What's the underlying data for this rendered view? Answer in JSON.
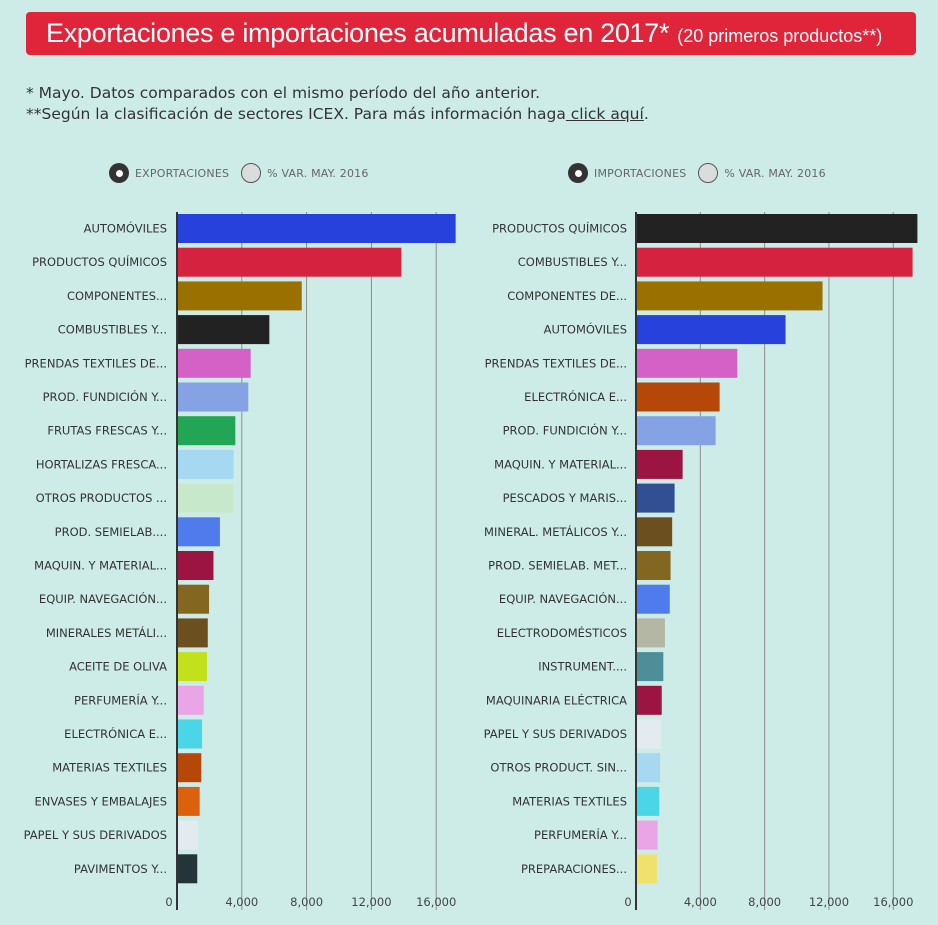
{
  "header": {
    "title": "Exportaciones e importaciones acumuladas en 2017*",
    "subtitle": "(20 primeros productos**)"
  },
  "notes": {
    "line1": "* Mayo. Datos comparados con el mismo período del año anterior.",
    "line2_prefix": "**Según la clasificación de sectores ICEX. Para más información haga",
    "line2_link": " click aquí",
    "line2_suffix": "."
  },
  "controls": {
    "exports": {
      "option1": "EXPORTACIONES",
      "option2": "% VAR. MAY. 2016",
      "selected": "option1"
    },
    "imports": {
      "option1": "IMPORTACIONES",
      "option2": "% VAR. MAY. 2016",
      "selected": "option1"
    }
  },
  "chart_data": [
    {
      "type": "bar",
      "orientation": "horizontal",
      "xlim": [
        0,
        17500
      ],
      "xticks": [
        "0",
        "4,000",
        "8,000",
        "12,000",
        "16,000"
      ],
      "xtick_values": [
        0,
        4000,
        8000,
        12000,
        16000
      ],
      "grid": true,
      "categories": [
        "AUTOMÓVILES",
        "PRODUCTOS QUÍMICOS",
        "COMPONENTES...",
        "COMBUSTIBLES Y...",
        "PRENDAS TEXTILES DE...",
        "PROD. FUNDICIÓN Y...",
        "FRUTAS FRESCAS Y...",
        "HORTALIZAS FRESCA...",
        "OTROS PRODUCTOS ...",
        "PROD. SEMIELAB....",
        "MAQUIN. Y MATERIAL...",
        "EQUIP. NAVEGACIÓN...",
        "MINERALES METÁLI...",
        "ACEITE DE OLIVA",
        "PERFUMERÍA Y...",
        "ELECTRÓNICA E...",
        "MATERIAS TEXTILES",
        "ENVASES Y EMBALAJES",
        "PAPEL Y SUS DERIVADOS",
        "PAVIMENTOS Y..."
      ],
      "values": [
        17200,
        13850,
        7700,
        5700,
        4550,
        4400,
        3600,
        3500,
        3450,
        2650,
        2250,
        1980,
        1900,
        1850,
        1650,
        1550,
        1500,
        1400,
        1300,
        1250
      ],
      "colors": [
        "#2741dd",
        "#d4223f",
        "#9a7100",
        "#222222",
        "#d361c6",
        "#84a2e4",
        "#22a555",
        "#a7d8f2",
        "#c7e8cb",
        "#4e7ced",
        "#9c1442",
        "#836620",
        "#6b4f1e",
        "#c3e01d",
        "#eaa5e6",
        "#4bd6e8",
        "#b54708",
        "#db610f",
        "#e2ebef",
        "#233539"
      ]
    },
    {
      "type": "bar",
      "orientation": "horizontal",
      "xlim": [
        0,
        17500
      ],
      "xticks": [
        "0",
        "4,000",
        "8,000",
        "12,000",
        "16,000"
      ],
      "xtick_values": [
        0,
        4000,
        8000,
        12000,
        16000
      ],
      "grid": true,
      "categories": [
        "PRODUCTOS QUÍMICOS",
        "COMBUSTIBLES Y...",
        "COMPONENTES DE...",
        "AUTOMÓVILES",
        "PRENDAS TEXTILES DE...",
        "ELECTRÓNICA E...",
        "PROD. FUNDICIÓN Y...",
        "MAQUIN. Y MATERIAL...",
        "PESCADOS Y MARIS...",
        "MINERAL. METÁLICOS Y...",
        "PROD. SEMIELAB. MET...",
        "EQUIP. NAVEGACIÓN...",
        "ELECTRODOMÉSTICOS",
        "INSTRUMENT....",
        "MAQUINARIA ELÉCTRICA",
        "PAPEL Y SUS DERIVADOS",
        "OTROS PRODUCT. SIN...",
        "MATERIAS TEXTILES",
        "PERFUMERÍA Y...",
        "PREPARACIONES..."
      ],
      "values": [
        17500,
        17200,
        11600,
        9300,
        6300,
        5200,
        4950,
        2900,
        2400,
        2250,
        2150,
        2100,
        1800,
        1700,
        1600,
        1550,
        1500,
        1450,
        1350,
        1300
      ],
      "colors": [
        "#222222",
        "#d4223f",
        "#9a7100",
        "#2741dd",
        "#d361c6",
        "#b54708",
        "#84a2e4",
        "#9c1442",
        "#314f92",
        "#6b4f1e",
        "#836620",
        "#4e7ced",
        "#b3b7a3",
        "#4d8e98",
        "#9c1442",
        "#e2ebef",
        "#a7d8f2",
        "#4bd6e8",
        "#eaa5e6",
        "#f0e06c"
      ]
    }
  ]
}
